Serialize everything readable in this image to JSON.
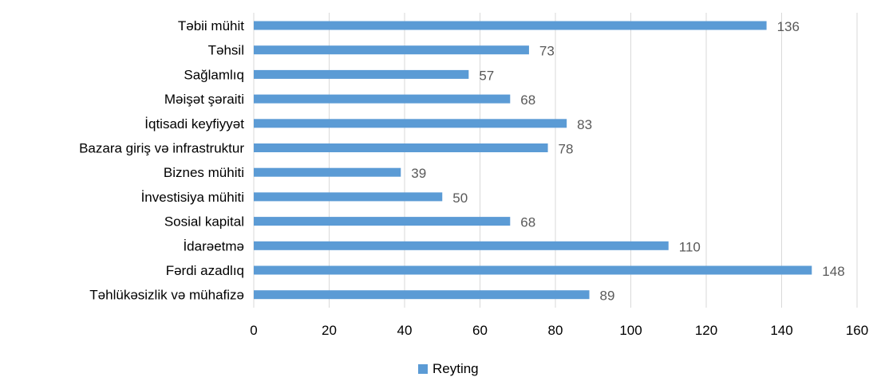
{
  "chart_data": {
    "type": "bar",
    "orientation": "horizontal",
    "categories": [
      "Təbii mühit",
      "Təhsil",
      "Sağlamlıq",
      "Məişət şəraiti",
      "İqtisadi keyfiyyət",
      "Bazara giriş və infrastruktur",
      "Biznes mühiti",
      "İnvestisiya mühiti",
      "Sosial kapital",
      "İdarəetmə",
      "Fərdi azadlıq",
      "Təhlükəsizlik və mühafizə"
    ],
    "series": [
      {
        "name": "Reyting",
        "values": [
          136,
          73,
          57,
          68,
          83,
          78,
          39,
          50,
          68,
          110,
          148,
          89
        ],
        "color": "#5B9BD5"
      }
    ],
    "xlim": [
      0,
      160
    ],
    "xticks": [
      0,
      20,
      40,
      60,
      80,
      100,
      120,
      140,
      160
    ],
    "data_labels": true,
    "grid": "vertical",
    "legend_position": "bottom",
    "title": "",
    "xlabel": "",
    "ylabel": ""
  }
}
